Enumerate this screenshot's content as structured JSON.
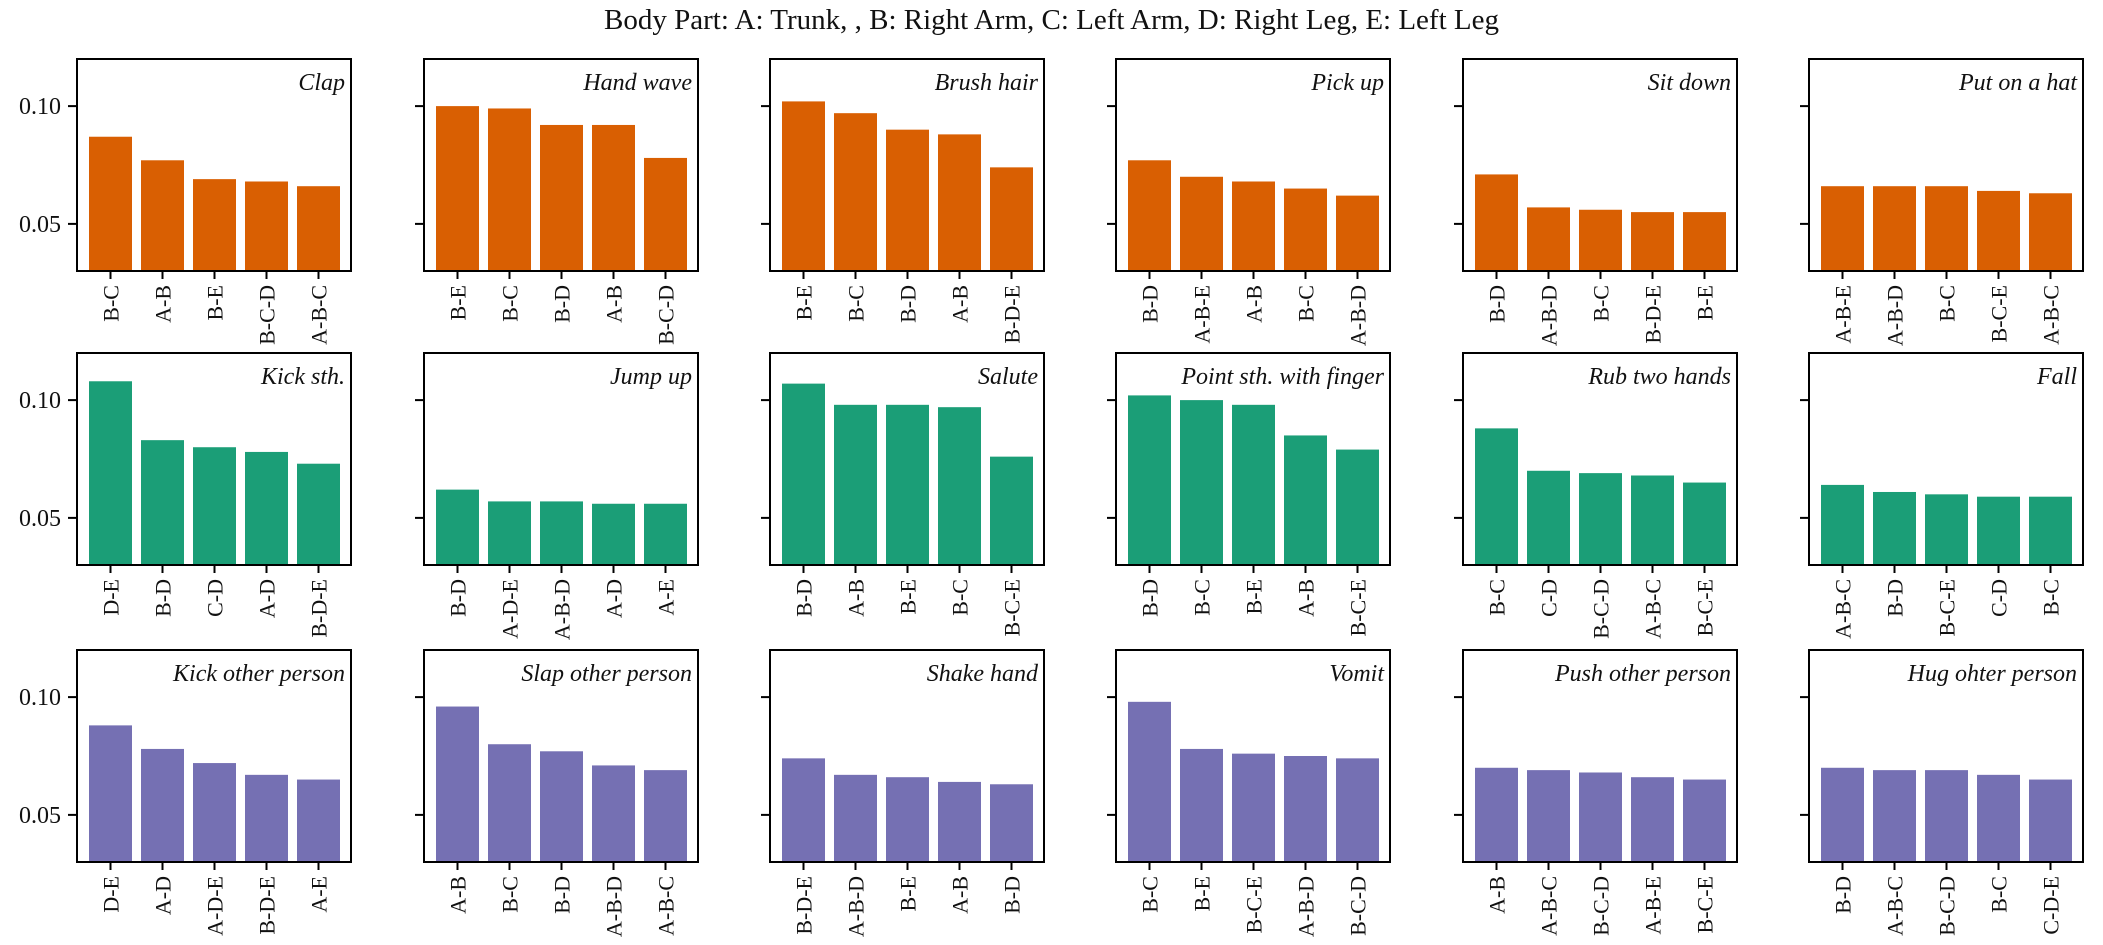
{
  "figure_title": "Body Part: A: Trunk, , B: Right Arm, C: Left Arm, D: Right Leg, E: Left Leg",
  "colors": {
    "row1": "#d95f02",
    "row2": "#1b9e77",
    "row3": "#7570b3"
  },
  "chart_data": [
    {
      "type": "bar",
      "title": "Clap",
      "categories": [
        "B-C",
        "A-B",
        "B-E",
        "B-C-D",
        "A-B-C"
      ],
      "values": [
        0.087,
        0.077,
        0.069,
        0.068,
        0.066
      ],
      "ylim": [
        0.03,
        0.12
      ],
      "yticks": [
        "0.05",
        "0.10"
      ],
      "grid": false,
      "color": "#d95f02"
    },
    {
      "type": "bar",
      "title": "Hand wave",
      "categories": [
        "B-E",
        "B-C",
        "B-D",
        "A-B",
        "B-C-D"
      ],
      "values": [
        0.1,
        0.099,
        0.092,
        0.092,
        0.078
      ],
      "ylim": [
        0.03,
        0.12
      ],
      "grid": false,
      "color": "#d95f02"
    },
    {
      "type": "bar",
      "title": "Brush hair",
      "categories": [
        "B-E",
        "B-C",
        "B-D",
        "A-B",
        "B-D-E"
      ],
      "values": [
        0.102,
        0.097,
        0.09,
        0.088,
        0.074
      ],
      "ylim": [
        0.03,
        0.12
      ],
      "grid": false,
      "color": "#d95f02"
    },
    {
      "type": "bar",
      "title": "Pick up",
      "categories": [
        "B-D",
        "A-B-E",
        "A-B",
        "B-C",
        "A-B-D"
      ],
      "values": [
        0.077,
        0.07,
        0.068,
        0.065,
        0.062
      ],
      "ylim": [
        0.03,
        0.12
      ],
      "grid": false,
      "color": "#d95f02"
    },
    {
      "type": "bar",
      "title": "Sit down",
      "categories": [
        "B-D",
        "A-B-D",
        "B-C",
        "B-D-E",
        "B-E"
      ],
      "values": [
        0.071,
        0.057,
        0.056,
        0.055,
        0.055
      ],
      "ylim": [
        0.03,
        0.12
      ],
      "grid": false,
      "color": "#d95f02"
    },
    {
      "type": "bar",
      "title": "Put on a hat",
      "categories": [
        "A-B-E",
        "A-B-D",
        "B-C",
        "B-C-E",
        "A-B-C"
      ],
      "values": [
        0.066,
        0.066,
        0.066,
        0.064,
        0.063
      ],
      "ylim": [
        0.03,
        0.12
      ],
      "grid": false,
      "color": "#d95f02"
    },
    {
      "type": "bar",
      "title": "Kick sth.",
      "categories": [
        "D-E",
        "B-D",
        "C-D",
        "A-D",
        "B-D-E"
      ],
      "values": [
        0.108,
        0.083,
        0.08,
        0.078,
        0.073
      ],
      "ylim": [
        0.03,
        0.12
      ],
      "yticks": [
        "0.05",
        "0.10"
      ],
      "grid": false,
      "color": "#1b9e77"
    },
    {
      "type": "bar",
      "title": "Jump up",
      "categories": [
        "B-D",
        "A-D-E",
        "A-B-D",
        "A-D",
        "A-E"
      ],
      "values": [
        0.062,
        0.057,
        0.057,
        0.056,
        0.056
      ],
      "ylim": [
        0.03,
        0.12
      ],
      "grid": false,
      "color": "#1b9e77"
    },
    {
      "type": "bar",
      "title": "Salute",
      "categories": [
        "B-D",
        "A-B",
        "B-E",
        "B-C",
        "B-C-E"
      ],
      "values": [
        0.107,
        0.098,
        0.098,
        0.097,
        0.076
      ],
      "ylim": [
        0.03,
        0.12
      ],
      "grid": false,
      "color": "#1b9e77"
    },
    {
      "type": "bar",
      "title": "Point sth. with finger",
      "categories": [
        "B-D",
        "B-C",
        "B-E",
        "A-B",
        "B-C-E"
      ],
      "values": [
        0.102,
        0.1,
        0.098,
        0.085,
        0.079
      ],
      "ylim": [
        0.03,
        0.12
      ],
      "grid": false,
      "color": "#1b9e77"
    },
    {
      "type": "bar",
      "title": "Rub two hands",
      "categories": [
        "B-C",
        "C-D",
        "B-C-D",
        "A-B-C",
        "B-C-E"
      ],
      "values": [
        0.088,
        0.07,
        0.069,
        0.068,
        0.065
      ],
      "ylim": [
        0.03,
        0.12
      ],
      "grid": false,
      "color": "#1b9e77"
    },
    {
      "type": "bar",
      "title": "Fall",
      "categories": [
        "A-B-C",
        "B-D",
        "B-C-E",
        "C-D",
        "B-C"
      ],
      "values": [
        0.064,
        0.061,
        0.06,
        0.059,
        0.059
      ],
      "ylim": [
        0.03,
        0.12
      ],
      "grid": false,
      "color": "#1b9e77"
    },
    {
      "type": "bar",
      "title": "Kick other person",
      "categories": [
        "D-E",
        "A-D",
        "A-D-E",
        "B-D-E",
        "A-E"
      ],
      "values": [
        0.088,
        0.078,
        0.072,
        0.067,
        0.065
      ],
      "ylim": [
        0.03,
        0.12
      ],
      "yticks": [
        "0.05",
        "0.10"
      ],
      "grid": false,
      "color": "#7570b3"
    },
    {
      "type": "bar",
      "title": "Slap other person",
      "categories": [
        "A-B",
        "B-C",
        "B-D",
        "A-B-D",
        "A-B-C"
      ],
      "values": [
        0.096,
        0.08,
        0.077,
        0.071,
        0.069
      ],
      "ylim": [
        0.03,
        0.12
      ],
      "grid": false,
      "color": "#7570b3"
    },
    {
      "type": "bar",
      "title": "Shake hand",
      "categories": [
        "B-D-E",
        "A-B-D",
        "B-E",
        "A-B",
        "B-D"
      ],
      "values": [
        0.074,
        0.067,
        0.066,
        0.064,
        0.063
      ],
      "ylim": [
        0.03,
        0.12
      ],
      "grid": false,
      "color": "#7570b3"
    },
    {
      "type": "bar",
      "title": "Vomit",
      "categories": [
        "B-C",
        "B-E",
        "B-C-E",
        "A-B-D",
        "B-C-D"
      ],
      "values": [
        0.098,
        0.078,
        0.076,
        0.075,
        0.074
      ],
      "ylim": [
        0.03,
        0.12
      ],
      "grid": false,
      "color": "#7570b3"
    },
    {
      "type": "bar",
      "title": "Push other person",
      "categories": [
        "A-B",
        "A-B-C",
        "B-C-D",
        "A-B-E",
        "B-C-E"
      ],
      "values": [
        0.07,
        0.069,
        0.068,
        0.066,
        0.065
      ],
      "ylim": [
        0.03,
        0.12
      ],
      "grid": false,
      "color": "#7570b3"
    },
    {
      "type": "bar",
      "title": "Hug ohter person",
      "categories": [
        "B-D",
        "A-B-C",
        "B-C-D",
        "B-C",
        "C-D-E"
      ],
      "values": [
        0.07,
        0.069,
        0.069,
        0.067,
        0.065
      ],
      "ylim": [
        0.03,
        0.12
      ],
      "grid": false,
      "color": "#7570b3"
    }
  ]
}
